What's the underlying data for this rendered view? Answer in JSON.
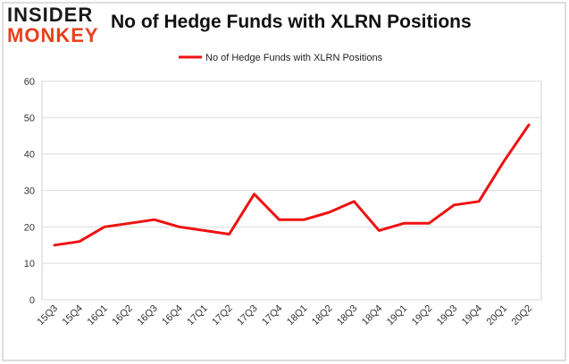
{
  "brand": {
    "line1": "INSIDER",
    "line2": "MONKEY",
    "accent_color": "#e8401c"
  },
  "chart_data": {
    "type": "line",
    "title": "No of Hedge Funds with XLRN Positions",
    "categories": [
      "15Q3",
      "15Q4",
      "16Q1",
      "16Q2",
      "16Q3",
      "16Q4",
      "17Q1",
      "17Q2",
      "17Q3",
      "17Q4",
      "18Q1",
      "18Q2",
      "18Q3",
      "18Q4",
      "19Q1",
      "19Q2",
      "19Q3",
      "19Q4",
      "20Q1",
      "20Q2"
    ],
    "series": [
      {
        "name": "No of Hedge Funds with XLRN Positions",
        "color": "#ee1111",
        "values": [
          15,
          16,
          20,
          21,
          22,
          20,
          19,
          18,
          29,
          22,
          22,
          24,
          27,
          19,
          21,
          21,
          26,
          27,
          38,
          48
        ]
      }
    ],
    "ylim": [
      0,
      60
    ],
    "yticks": [
      0,
      10,
      20,
      30,
      40,
      50,
      60
    ],
    "grid": true,
    "legend": "top-center"
  }
}
